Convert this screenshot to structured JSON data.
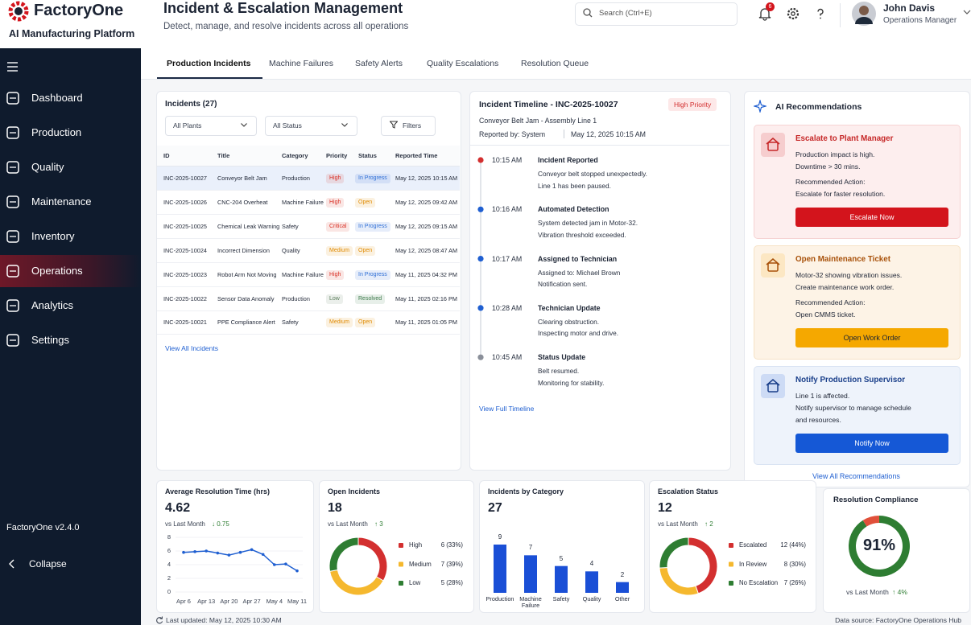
{
  "brand": {
    "name": "FactoryOne",
    "subtitle": "AI Manufacturing Platform"
  },
  "header": {
    "title": "Incident & Escalation Management",
    "subtitle": "Detect, manage, and resolve incidents across all operations",
    "search": "Search (Ctrl+E)",
    "notifications": 6,
    "user": {
      "name": "John Davis",
      "role": "Operations Manager"
    }
  },
  "nav": {
    "items": [
      "Dashboard",
      "Production",
      "Quality",
      "Maintenance",
      "Inventory",
      "Operations",
      "Analytics",
      "Settings"
    ],
    "active": 5,
    "version": "FactoryOne v2.4.0",
    "collapse": "Collapse"
  },
  "tabs": {
    "items": [
      "Production Incidents",
      "Machine Failures",
      "Safety Alerts",
      "Quality Escalations",
      "Resolution Queue"
    ],
    "active": 0
  },
  "incidents": {
    "title": "Incidents (27)",
    "filters": [
      "All Plants",
      "All Status"
    ],
    "filter_button": "Filters",
    "columns": [
      "ID",
      "Title",
      "Category",
      "Priority",
      "Status",
      "Reported Time"
    ],
    "rows": [
      [
        "INC-2025-10027",
        "Conveyor Belt Jam",
        "Production",
        "High",
        "In Progress",
        "May 12, 2025 10:15 AM"
      ],
      [
        "INC-2025-10026",
        "CNC-204 Overheat",
        "Machine Failure",
        "High",
        "Open",
        "May 12, 2025 09:42 AM"
      ],
      [
        "INC-2025-10025",
        "Chemical Leak Warning",
        "Safety",
        "Critical",
        "In Progress",
        "May 12, 2025 09:15 AM"
      ],
      [
        "INC-2025-10024",
        "Incorrect Dimension",
        "Quality",
        "Medium",
        "Open",
        "May 12, 2025 08:47 AM"
      ],
      [
        "INC-2025-10023",
        "Robot Arm Not Moving",
        "Machine Failure",
        "High",
        "In Progress",
        "May 11, 2025 04:32 PM"
      ],
      [
        "INC-2025-10022",
        "Sensor Data Anomaly",
        "Production",
        "Low",
        "Resolved",
        "May 11, 2025 02:16 PM"
      ],
      [
        "INC-2025-10021",
        "PPE Compliance Alert",
        "Safety",
        "Medium",
        "Open",
        "May 11, 2025 01:05 PM"
      ]
    ],
    "selected": 0,
    "badge_colors": {
      "High": "#d93025",
      "Critical": "#d93025",
      "Medium": "#e08a00",
      "Low": "#5b7d5b",
      "In Progress": "#2f6fd6",
      "Open": "#e08a00",
      "Resolved": "#3d7a4a"
    },
    "link": "View All Incidents"
  },
  "timeline": {
    "title": "Incident Timeline - INC-2025-10027",
    "badge": "High Priority",
    "subtitle": "Conveyor Belt Jam - Assembly Line 1",
    "reported_by": "Reported by: System",
    "reported_at": "May 12, 2025 10:15 AM",
    "events": [
      {
        "time": "10:15 AM",
        "title": "Incident Reported",
        "lines": [
          "Conveyor belt stopped unexpectedly.",
          "Line 1 has been paused."
        ],
        "color": "#d32f2f"
      },
      {
        "time": "10:16 AM",
        "title": "Automated Detection",
        "lines": [
          "System detected jam in Motor-32.",
          "Vibration threshold exceeded."
        ],
        "color": "#1f5fd1"
      },
      {
        "time": "10:17 AM",
        "title": "Assigned to Technician",
        "lines": [
          "Assigned to: Michael Brown",
          "Notification sent."
        ],
        "color": "#1f5fd1"
      },
      {
        "time": "10:28 AM",
        "title": "Technician Update",
        "lines": [
          "Clearing obstruction.",
          "Inspecting motor and drive."
        ],
        "color": "#1f5fd1"
      },
      {
        "time": "10:45 AM",
        "title": "Status Update",
        "lines": [
          "Belt resumed.",
          "Monitoring for stability."
        ],
        "color": "#8a8f99"
      }
    ],
    "link": "View Full Timeline"
  },
  "ai": {
    "title": "AI Recommendations",
    "cards": [
      {
        "title": "Escalate to Plant Manager",
        "body": [
          "Production impact is high.",
          "Downtime > 30 mins."
        ],
        "action": [
          "Recommended Action:",
          "Escalate for faster resolution."
        ],
        "button": "Escalate Now",
        "color": "#d3141c",
        "title_color": "#c62828",
        "background": "#fdeeee",
        "border": "#f6d3d3"
      },
      {
        "title": "Open Maintenance Ticket",
        "body": [
          "Motor-32 showing vibration issues.",
          "Create maintenance work order."
        ],
        "action": [
          "Recommended Action:",
          "Open CMMS ticket."
        ],
        "button": "Open Work Order",
        "color": "#f5a800",
        "title_color": "#a8510a",
        "background": "#fdf3e6",
        "border": "#f6e2c6"
      },
      {
        "title": "Notify Production Supervisor",
        "body": [
          "Line 1 is affected.",
          "Notify supervisor to manage schedule",
          "and resources."
        ],
        "button": "Notify Now",
        "color": "#1558d6",
        "title_color": "#1a3f8a",
        "background": "#eef3fb",
        "border": "#d9e3f3"
      }
    ],
    "link": "View All Recommendations"
  },
  "chart_data": [
    {
      "type": "line",
      "title": "Average Resolution Time (hrs)",
      "summary": {
        "value": 4.62,
        "compare": "vs Last Month",
        "change": "↓ 0.75"
      },
      "categories": [
        "Apr 6",
        null,
        "Apr 13",
        null,
        "Apr 20",
        null,
        "Apr 27",
        null,
        "May 4",
        null,
        "May 11"
      ],
      "values": [
        5.8,
        5.9,
        6.0,
        5.7,
        5.4,
        5.8,
        6.2,
        5.5,
        4.0,
        4.1,
        3.1
      ],
      "color": "#1f5fd1",
      "ylim": [
        0,
        8
      ],
      "yticks": [
        0,
        2,
        4,
        6,
        8
      ]
    },
    {
      "type": "pie",
      "donut": true,
      "title": "Open Incidents",
      "summary": {
        "value": 18,
        "compare": "vs Last Month",
        "change": "↑ 3"
      },
      "categories": [
        "High",
        "Medium",
        "Low"
      ],
      "values": [
        6,
        7,
        5
      ],
      "value_labels": [
        "6 (33%)",
        "7 (39%)",
        "5 (28%)"
      ],
      "colors": [
        "#d32f2f",
        "#f5b82e",
        "#2e7d32"
      ]
    },
    {
      "type": "bar",
      "title": "Incidents by Category",
      "summary": {
        "value": 27
      },
      "categories": [
        "Production",
        "Machine Failure",
        "Safety",
        "Quality",
        "Other"
      ],
      "values": [
        9,
        7,
        5,
        4,
        2
      ],
      "color": "#1a4fd6"
    },
    {
      "type": "pie",
      "donut": true,
      "title": "Escalation Status",
      "summary": {
        "value": 12,
        "compare": "vs Last Month",
        "change": "↑ 2"
      },
      "categories": [
        "Escalated",
        "In Review",
        "No Escalation"
      ],
      "values": [
        12,
        8,
        7
      ],
      "value_labels": [
        "12 (44%)",
        "8 (30%)",
        "7 (26%)"
      ],
      "colors": [
        "#d32f2f",
        "#f5b82e",
        "#2e7d32"
      ]
    },
    {
      "type": "gauge",
      "title": "Resolution Compliance",
      "value": 91,
      "value_label": "91%",
      "summary": {
        "compare": "vs Last Month",
        "change": "↑ 4%"
      },
      "color": "#2e7d32",
      "rest_color": "#e0503a"
    }
  ],
  "footer": {
    "updated": "Last updated: May 12, 2025 10:30 AM",
    "source": "Data source: FactoryOne Operations Hub"
  }
}
